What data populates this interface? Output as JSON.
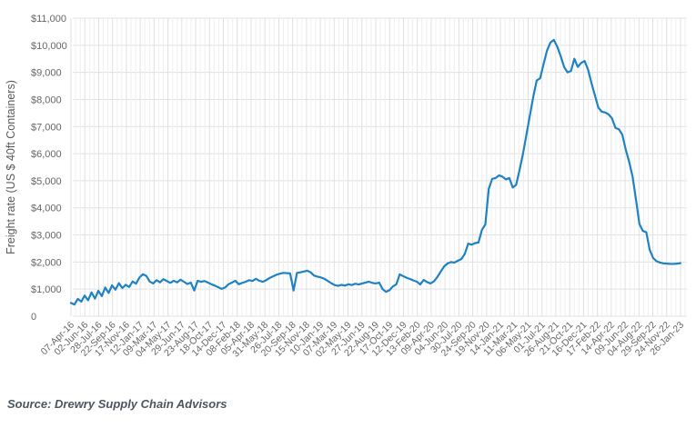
{
  "source": {
    "label": "Source: Drewry Supply Chain Advisors"
  },
  "chart_data": {
    "type": "line",
    "title": "",
    "xlabel": "",
    "ylabel": "Freight rate (US $ 40ft Containers)",
    "legend": "none",
    "grid": "on",
    "ylim": [
      0,
      11000
    ],
    "line_color": "#1e82c3",
    "y_ticks": [
      {
        "label": "$11,000",
        "value": 11000
      },
      {
        "label": "$10,000",
        "value": 10000
      },
      {
        "label": "$9,000",
        "value": 9000
      },
      {
        "label": "$8,000",
        "value": 8000
      },
      {
        "label": "$7,000",
        "value": 7000
      },
      {
        "label": "$6,000",
        "value": 6000
      },
      {
        "label": "$5,000",
        "value": 5000
      },
      {
        "label": "$4,000",
        "value": 4000
      },
      {
        "label": "$3,000",
        "value": 3000
      },
      {
        "label": "$2,000",
        "value": 2000
      },
      {
        "label": "$1,000",
        "value": 1000
      },
      {
        "label": "0",
        "value": 0
      }
    ],
    "categories": [
      "07-Apr-16",
      "02-Jun-16",
      "28-Jul-16",
      "22-Sep-16",
      "17-Nov-16",
      "12-Jan-17",
      "09-Mar-17",
      "04-May-17",
      "29-Jun-17",
      "23-Aug-17",
      "18-Oct-17",
      "14-Dec-17",
      "08-Feb-18",
      "05-Apr-18",
      "31-May-18",
      "26-Jul-18",
      "20-Sep-18",
      "15-Nov-18",
      "10-Jan-19",
      "07-Mar-19",
      "02-May-19",
      "27-Jun-19",
      "22-Aug-19",
      "17-Oct-19",
      "12-Dec-19",
      "13-Feb-20",
      "09-Apr-20",
      "04-Jun-20",
      "30-Jul-20",
      "24-Sep-20",
      "19-Nov-20",
      "14-Jan-21",
      "11-Mar-21",
      "06-May-21",
      "01-Jul-21",
      "26-Aug-21",
      "21-Oct-21",
      "16-Dec-21",
      "17-Feb-22",
      "14-Apr-22",
      "09-Jun-22",
      "04-Aug-22",
      "29-Sep-22",
      "24-Nov-22",
      "26-Jan-23"
    ],
    "series": [
      {
        "name": "Freight rate (US $ 40ft Containers)",
        "values": [
          490,
          430,
          640,
          540,
          760,
          590,
          880,
          650,
          940,
          740,
          1060,
          860,
          1140,
          980,
          1220,
          1040,
          1160,
          1080,
          1280,
          1200,
          1430,
          1550,
          1490,
          1280,
          1210,
          1330,
          1250,
          1370,
          1300,
          1230,
          1310,
          1250,
          1350,
          1270,
          1190,
          1240,
          950,
          1310,
          1270,
          1300,
          1240,
          1180,
          1130,
          1070,
          1010,
          1060,
          1180,
          1240,
          1310,
          1180,
          1230,
          1270,
          1330,
          1300,
          1380,
          1310,
          1270,
          1330,
          1410,
          1470,
          1530,
          1570,
          1600,
          1590,
          1580,
          950,
          1600,
          1620,
          1650,
          1680,
          1620,
          1500,
          1460,
          1430,
          1380,
          1300,
          1220,
          1150,
          1120,
          1160,
          1130,
          1180,
          1150,
          1200,
          1170,
          1210,
          1240,
          1275,
          1230,
          1210,
          1240,
          1000,
          900,
          960,
          1100,
          1175,
          1545,
          1480,
          1420,
          1375,
          1320,
          1275,
          1175,
          1340,
          1260,
          1210,
          1290,
          1450,
          1650,
          1845,
          1950,
          2000,
          1980,
          2050,
          2110,
          2300,
          2680,
          2640,
          2700,
          2720,
          3185,
          3390,
          4700,
          5070,
          5100,
          5200,
          5150,
          5050,
          5100,
          4750,
          4850,
          5400,
          6000,
          6700,
          7400,
          8100,
          8700,
          8780,
          9300,
          9800,
          10100,
          10200,
          9950,
          9600,
          9200,
          9000,
          9050,
          9500,
          9200,
          9350,
          9420,
          9100,
          8600,
          8150,
          7700,
          7550,
          7520,
          7450,
          7300,
          6950,
          6900,
          6700,
          6150,
          5700,
          5150,
          4300,
          3400,
          3150,
          3100,
          2450,
          2150,
          2030,
          1980,
          1950,
          1940,
          1930,
          1930,
          1940,
          1960
        ]
      }
    ]
  }
}
